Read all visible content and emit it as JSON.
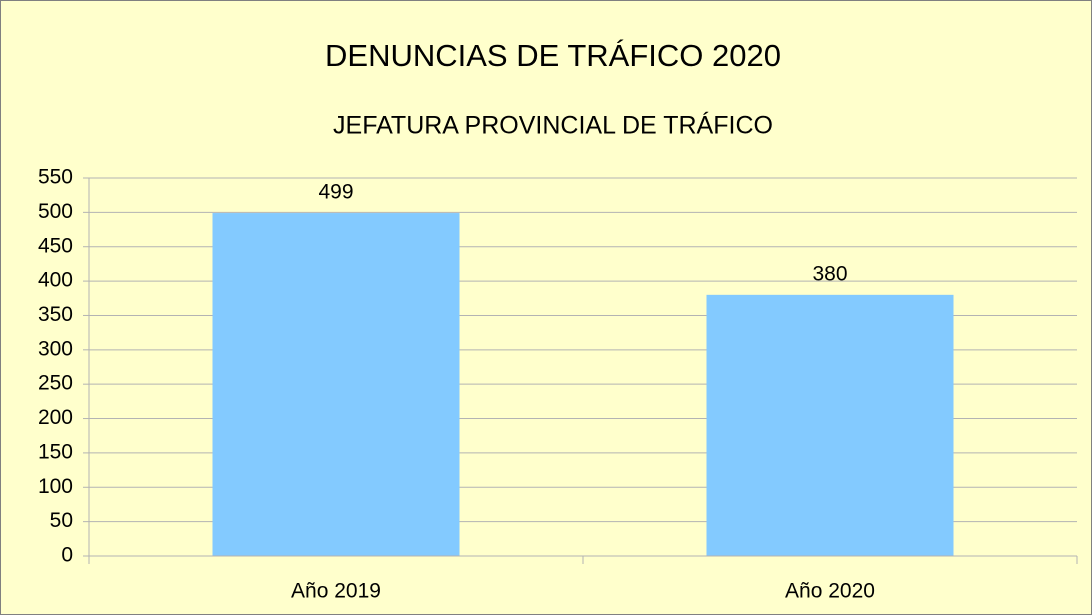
{
  "chart_data": {
    "type": "bar",
    "title": "DENUNCIAS DE TRÁFICO 2020",
    "subtitle": "JEFATURA PROVINCIAL DE TRÁFICO",
    "categories": [
      "Año 2019",
      "Año 2020"
    ],
    "values": [
      499,
      380
    ],
    "color": "#83caff",
    "ylim": [
      0,
      550
    ],
    "yticks": [
      0,
      50,
      100,
      150,
      200,
      250,
      300,
      350,
      400,
      450,
      500,
      550
    ],
    "grid": true
  }
}
